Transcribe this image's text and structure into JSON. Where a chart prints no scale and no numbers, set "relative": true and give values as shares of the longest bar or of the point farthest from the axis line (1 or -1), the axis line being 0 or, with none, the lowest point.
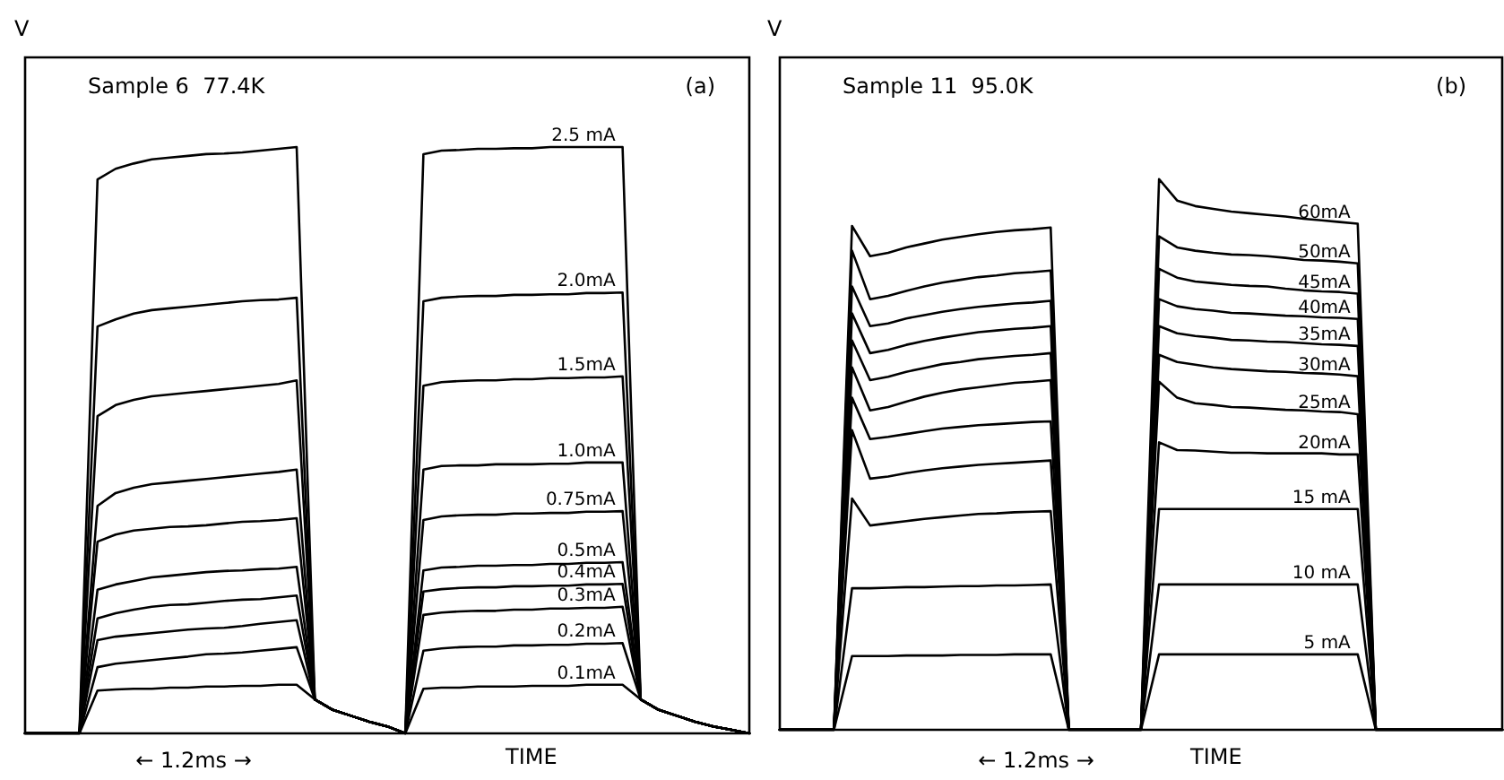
{
  "chart_data": [
    {
      "type": "line",
      "title": "Sample 6  77.4K",
      "subtitle": "(a)",
      "xlabel": "TIME",
      "ylabel": "V",
      "annotations": [
        "← 1.2ms →"
      ],
      "relative": true,
      "categories": [
        null,
        null,
        null,
        null,
        null,
        null,
        null,
        null,
        null,
        null,
        null,
        null,
        null,
        null,
        null,
        null,
        null,
        null,
        null,
        null,
        null,
        null,
        null,
        null,
        null,
        null,
        null,
        null,
        null,
        null,
        null,
        null,
        null,
        null,
        null,
        null,
        null,
        null,
        null,
        null,
        null
      ],
      "series": [
        {
          "name": "2.5 mA",
          "color": "#000000",
          "values": [
            0,
            0,
            0,
            0,
            0.945,
            0.963,
            0.972,
            0.979,
            0.982,
            0.985,
            0.988,
            0.989,
            0.991,
            0.994,
            0.997,
            1,
            0.058,
            0.04,
            0.03,
            0.02,
            0.012,
            0,
            0.988,
            0.994,
            0.995,
            0.997,
            0.997,
            0.998,
            0.998,
            1,
            1,
            1,
            1,
            1,
            0.058,
            0.04,
            0.03,
            0.02,
            0.012,
            0.006,
            0
          ]
        },
        {
          "name": "2.0mA",
          "color": "#000000",
          "values": [
            0,
            0,
            0,
            0,
            0.694,
            0.706,
            0.716,
            0.722,
            0.725,
            0.728,
            0.731,
            0.734,
            0.737,
            0.739,
            0.74,
            0.743,
            0.058,
            0.04,
            0.03,
            0.02,
            0.012,
            0,
            0.737,
            0.743,
            0.745,
            0.746,
            0.746,
            0.748,
            0.748,
            0.749,
            0.749,
            0.751,
            0.751,
            0.752,
            0.058,
            0.04,
            0.03,
            0.02,
            0.012,
            0.006,
            0
          ]
        },
        {
          "name": "1.5mA",
          "color": "#000000",
          "values": [
            0,
            0,
            0,
            0,
            0.541,
            0.56,
            0.569,
            0.575,
            0.578,
            0.581,
            0.584,
            0.587,
            0.59,
            0.593,
            0.596,
            0.602,
            0.058,
            0.04,
            0.03,
            0.02,
            0.012,
            0,
            0.593,
            0.599,
            0.601,
            0.602,
            0.602,
            0.604,
            0.604,
            0.606,
            0.606,
            0.607,
            0.607,
            0.609,
            0.058,
            0.04,
            0.03,
            0.02,
            0.012,
            0.006,
            0
          ]
        },
        {
          "name": "1.0mA",
          "color": "#000000",
          "values": [
            0,
            0,
            0,
            0,
            0.388,
            0.41,
            0.419,
            0.425,
            0.428,
            0.431,
            0.434,
            0.437,
            0.44,
            0.443,
            0.446,
            0.45,
            0.058,
            0.04,
            0.03,
            0.02,
            0.012,
            0,
            0.45,
            0.456,
            0.457,
            0.457,
            0.459,
            0.459,
            0.459,
            0.46,
            0.46,
            0.462,
            0.462,
            0.462,
            0.058,
            0.04,
            0.03,
            0.02,
            0.012,
            0.006,
            0
          ]
        },
        {
          "name": "0.75mA",
          "color": "#000000",
          "values": [
            0,
            0,
            0,
            0,
            0.327,
            0.339,
            0.346,
            0.349,
            0.352,
            0.353,
            0.355,
            0.358,
            0.361,
            0.362,
            0.364,
            0.367,
            0.058,
            0.04,
            0.03,
            0.02,
            0.012,
            0,
            0.364,
            0.37,
            0.372,
            0.373,
            0.373,
            0.375,
            0.375,
            0.376,
            0.376,
            0.378,
            0.378,
            0.379,
            0.058,
            0.04,
            0.03,
            0.02,
            0.012,
            0.006,
            0
          ]
        },
        {
          "name": "0.5mA",
          "color": "#000000",
          "values": [
            0,
            0,
            0,
            0,
            0.245,
            0.254,
            0.26,
            0.266,
            0.269,
            0.272,
            0.275,
            0.277,
            0.278,
            0.28,
            0.281,
            0.284,
            0.058,
            0.04,
            0.03,
            0.02,
            0.012,
            0,
            0.278,
            0.283,
            0.284,
            0.286,
            0.286,
            0.287,
            0.287,
            0.289,
            0.289,
            0.291,
            0.291,
            0.292,
            0.058,
            0.04,
            0.03,
            0.02,
            0.012,
            0.006,
            0
          ]
        },
        {
          "name": "0.4mA",
          "color": "#000000",
          "values": [
            0,
            0,
            0,
            0,
            0.196,
            0.205,
            0.211,
            0.216,
            0.219,
            0.22,
            0.223,
            0.226,
            0.228,
            0.229,
            0.232,
            0.235,
            0.058,
            0.04,
            0.03,
            0.02,
            0.012,
            0,
            0.242,
            0.246,
            0.248,
            0.249,
            0.249,
            0.251,
            0.251,
            0.252,
            0.252,
            0.254,
            0.254,
            0.255,
            0.058,
            0.04,
            0.03,
            0.02,
            0.012,
            0.006,
            0
          ]
        },
        {
          "name": "0.3mA",
          "color": "#000000",
          "values": [
            0,
            0,
            0,
            0,
            0.159,
            0.165,
            0.168,
            0.171,
            0.174,
            0.177,
            0.179,
            0.18,
            0.183,
            0.187,
            0.19,
            0.193,
            0.058,
            0.04,
            0.03,
            0.02,
            0.012,
            0,
            0.202,
            0.206,
            0.208,
            0.209,
            0.209,
            0.211,
            0.211,
            0.213,
            0.213,
            0.214,
            0.214,
            0.216,
            0.058,
            0.04,
            0.03,
            0.02,
            0.012,
            0.006,
            0
          ]
        },
        {
          "name": "0.2mA",
          "color": "#000000",
          "values": [
            0,
            0,
            0,
            0,
            0.113,
            0.119,
            0.122,
            0.125,
            0.128,
            0.131,
            0.135,
            0.136,
            0.138,
            0.141,
            0.144,
            0.147,
            0.058,
            0.04,
            0.03,
            0.02,
            0.012,
            0,
            0.141,
            0.145,
            0.147,
            0.148,
            0.148,
            0.15,
            0.15,
            0.151,
            0.151,
            0.153,
            0.153,
            0.154,
            0.058,
            0.04,
            0.03,
            0.02,
            0.012,
            0.006,
            0
          ]
        },
        {
          "name": "0.1mA",
          "color": "#000000",
          "values": [
            0,
            0,
            0,
            0,
            0.073,
            0.075,
            0.076,
            0.076,
            0.078,
            0.078,
            0.08,
            0.08,
            0.081,
            0.081,
            0.083,
            0.083,
            0.058,
            0.04,
            0.03,
            0.02,
            0.012,
            0,
            0.076,
            0.078,
            0.078,
            0.08,
            0.08,
            0.08,
            0.081,
            0.081,
            0.081,
            0.083,
            0.083,
            0.083,
            0.058,
            0.04,
            0.03,
            0.02,
            0.012,
            0.006,
            0
          ]
        }
      ]
    },
    {
      "type": "line",
      "title": "Sample 11  95.0K",
      "subtitle": "(b)",
      "xlabel": "TIME",
      "ylabel": "V",
      "annotations": [
        "← 1.2ms →"
      ],
      "relative": true,
      "categories": [
        null,
        null,
        null,
        null,
        null,
        null,
        null,
        null,
        null,
        null,
        null,
        null,
        null,
        null,
        null,
        null,
        null,
        null,
        null,
        null,
        null,
        null,
        null,
        null,
        null,
        null,
        null,
        null,
        null,
        null,
        null,
        null,
        null,
        null,
        null,
        null,
        null,
        null,
        null,
        null,
        null
      ],
      "series": [
        {
          "name": "60mA",
          "color": "#000000",
          "values": [
            0,
            0,
            0,
            0,
            0.915,
            0.86,
            0.866,
            0.876,
            0.883,
            0.89,
            0.895,
            0.9,
            0.904,
            0.907,
            0.909,
            0.912,
            0,
            0,
            0,
            0,
            0,
            1,
            0.961,
            0.951,
            0.946,
            0.941,
            0.938,
            0.935,
            0.932,
            0.928,
            0.925,
            0.922,
            0.919,
            0,
            0,
            0,
            0,
            0,
            0,
            0,
            0
          ]
        },
        {
          "name": "50mA",
          "color": "#000000",
          "values": [
            0,
            0,
            0,
            0,
            0.87,
            0.782,
            0.788,
            0.797,
            0.805,
            0.812,
            0.817,
            0.822,
            0.825,
            0.829,
            0.831,
            0.834,
            0,
            0,
            0,
            0,
            0,
            0.896,
            0.876,
            0.87,
            0.866,
            0.863,
            0.862,
            0.86,
            0.857,
            0.853,
            0.852,
            0.85,
            0.847,
            0,
            0,
            0,
            0,
            0,
            0,
            0,
            0
          ]
        },
        {
          "name": "45mA",
          "color": "#000000",
          "values": [
            0,
            0,
            0,
            0,
            0.805,
            0.733,
            0.738,
            0.747,
            0.753,
            0.759,
            0.764,
            0.768,
            0.771,
            0.774,
            0.776,
            0.779,
            0,
            0,
            0,
            0,
            0,
            0.837,
            0.821,
            0.814,
            0.811,
            0.808,
            0.806,
            0.805,
            0.801,
            0.798,
            0.796,
            0.795,
            0.792,
            0,
            0,
            0,
            0,
            0,
            0,
            0,
            0
          ]
        },
        {
          "name": "40mA",
          "color": "#000000",
          "values": [
            0,
            0,
            0,
            0,
            0.756,
            0.684,
            0.69,
            0.699,
            0.706,
            0.712,
            0.717,
            0.722,
            0.725,
            0.728,
            0.73,
            0.733,
            0,
            0,
            0,
            0,
            0,
            0.782,
            0.769,
            0.764,
            0.761,
            0.757,
            0.756,
            0.754,
            0.752,
            0.751,
            0.749,
            0.748,
            0.746,
            0,
            0,
            0,
            0,
            0,
            0,
            0,
            0
          ]
        },
        {
          "name": "35mA",
          "color": "#000000",
          "values": [
            0,
            0,
            0,
            0,
            0.707,
            0.635,
            0.641,
            0.65,
            0.657,
            0.664,
            0.668,
            0.673,
            0.676,
            0.679,
            0.681,
            0.684,
            0,
            0,
            0,
            0,
            0,
            0.733,
            0.72,
            0.715,
            0.712,
            0.708,
            0.707,
            0.705,
            0.704,
            0.702,
            0.7,
            0.699,
            0.697,
            0,
            0,
            0,
            0,
            0,
            0,
            0,
            0
          ]
        },
        {
          "name": "30mA",
          "color": "#000000",
          "values": [
            0,
            0,
            0,
            0,
            0.658,
            0.58,
            0.586,
            0.596,
            0.605,
            0.612,
            0.618,
            0.622,
            0.626,
            0.63,
            0.632,
            0.635,
            0,
            0,
            0,
            0,
            0,
            0.681,
            0.668,
            0.663,
            0.658,
            0.655,
            0.653,
            0.651,
            0.65,
            0.648,
            0.647,
            0.645,
            0.642,
            0,
            0,
            0,
            0,
            0,
            0,
            0,
            0
          ]
        },
        {
          "name": "25mA",
          "color": "#000000",
          "values": [
            0,
            0,
            0,
            0,
            0.603,
            0.528,
            0.532,
            0.537,
            0.542,
            0.547,
            0.55,
            0.553,
            0.555,
            0.557,
            0.559,
            0.56,
            0,
            0,
            0,
            0,
            0,
            0.632,
            0.603,
            0.593,
            0.59,
            0.586,
            0.585,
            0.583,
            0.581,
            0.58,
            0.578,
            0.577,
            0.573,
            0,
            0,
            0,
            0,
            0,
            0,
            0,
            0
          ]
        },
        {
          "name": "20mA",
          "color": "#000000",
          "values": [
            0,
            0,
            0,
            0,
            0.544,
            0.456,
            0.46,
            0.466,
            0.471,
            0.475,
            0.478,
            0.481,
            0.483,
            0.485,
            0.487,
            0.489,
            0,
            0,
            0,
            0,
            0,
            0.522,
            0.508,
            0.507,
            0.505,
            0.503,
            0.503,
            0.502,
            0.502,
            0.502,
            0.502,
            0.5,
            0.5,
            0,
            0,
            0,
            0,
            0,
            0,
            0,
            0
          ]
        },
        {
          "name": "15 mA",
          "color": "#000000",
          "values": [
            0,
            0,
            0,
            0,
            0.42,
            0.371,
            0.375,
            0.379,
            0.383,
            0.386,
            0.389,
            0.392,
            0.393,
            0.395,
            0.396,
            0.397,
            0,
            0,
            0,
            0,
            0,
            0.401,
            0.401,
            0.401,
            0.401,
            0.401,
            0.401,
            0.401,
            0.401,
            0.401,
            0.401,
            0.401,
            0.401,
            0,
            0,
            0,
            0,
            0,
            0,
            0,
            0
          ]
        },
        {
          "name": "10 mA",
          "color": "#000000",
          "values": [
            0,
            0,
            0,
            0,
            0.257,
            0.257,
            0.258,
            0.259,
            0.259,
            0.26,
            0.261,
            0.261,
            0.262,
            0.262,
            0.263,
            0.264,
            0,
            0,
            0,
            0,
            0,
            0.264,
            0.264,
            0.264,
            0.264,
            0.264,
            0.264,
            0.264,
            0.264,
            0.264,
            0.264,
            0.264,
            0.264,
            0,
            0,
            0,
            0,
            0,
            0,
            0,
            0
          ]
        },
        {
          "name": "5 mA",
          "color": "#000000",
          "values": [
            0,
            0,
            0,
            0,
            0.134,
            0.134,
            0.134,
            0.135,
            0.135,
            0.135,
            0.136,
            0.136,
            0.136,
            0.137,
            0.137,
            0.137,
            0,
            0,
            0,
            0,
            0,
            0.137,
            0.137,
            0.137,
            0.137,
            0.137,
            0.137,
            0.137,
            0.137,
            0.137,
            0.137,
            0.137,
            0.137,
            0,
            0,
            0,
            0,
            0,
            0,
            0,
            0
          ]
        }
      ]
    }
  ]
}
